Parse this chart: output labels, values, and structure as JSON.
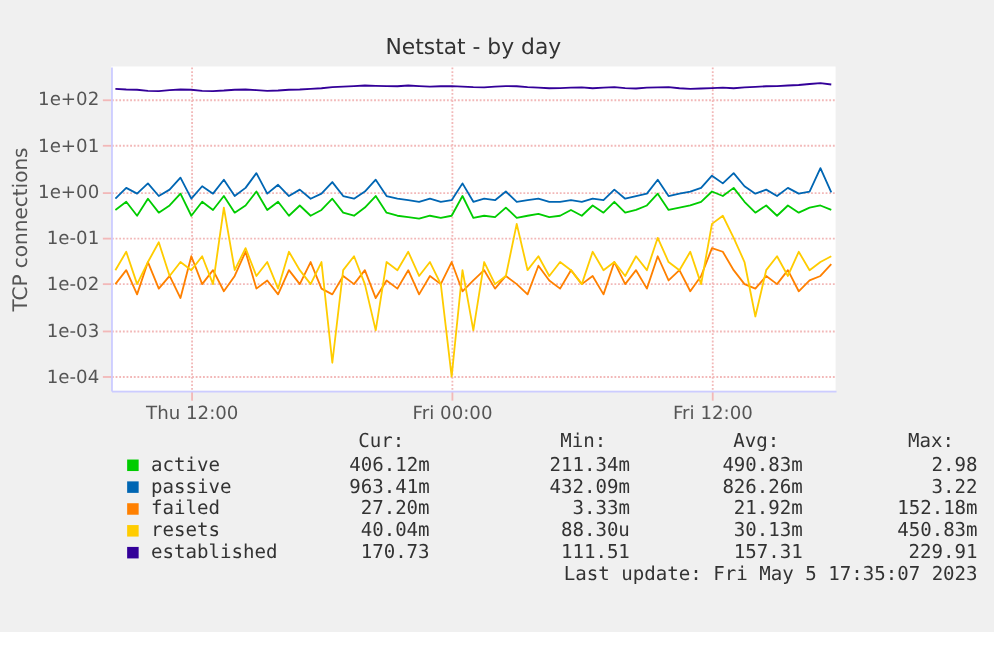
{
  "chart_data": {
    "type": "line",
    "title": "Netstat - by day",
    "ylabel": "TCP connections",
    "log": true,
    "grid": true,
    "legend": "bottom",
    "xlim": [
      "2023-05-04T08:18",
      "2023-05-05T17:42"
    ],
    "xticks": [
      {
        "value": "2023-05-04T12:00",
        "label": "Thu 12:00"
      },
      {
        "value": "2023-05-05T00:00",
        "label": "Fri 00:00"
      },
      {
        "value": "2023-05-05T12:00",
        "label": "Fri 12:00"
      }
    ],
    "ylim": [
      5e-05,
      500
    ],
    "yticks": [
      {
        "value": 0.0001,
        "label": "1e-04"
      },
      {
        "value": 0.001,
        "label": "1e-03"
      },
      {
        "value": 0.01,
        "label": "1e-02"
      },
      {
        "value": 0.1,
        "label": "1e-01"
      },
      {
        "value": 1,
        "label": "1e+00"
      },
      {
        "value": 10,
        "label": "1e+01"
      },
      {
        "value": 100,
        "label": "1e+02"
      }
    ],
    "x": [
      "2023-05-04T08:30",
      "2023-05-04T09:00",
      "2023-05-04T09:30",
      "2023-05-04T10:00",
      "2023-05-04T10:30",
      "2023-05-04T11:00",
      "2023-05-04T11:30",
      "2023-05-04T12:00",
      "2023-05-04T12:30",
      "2023-05-04T13:00",
      "2023-05-04T13:30",
      "2023-05-04T14:00",
      "2023-05-04T14:30",
      "2023-05-04T15:00",
      "2023-05-04T15:30",
      "2023-05-04T16:00",
      "2023-05-04T16:30",
      "2023-05-04T17:00",
      "2023-05-04T17:30",
      "2023-05-04T18:00",
      "2023-05-04T18:30",
      "2023-05-04T19:00",
      "2023-05-04T19:30",
      "2023-05-04T20:00",
      "2023-05-04T20:30",
      "2023-05-04T21:00",
      "2023-05-04T21:30",
      "2023-05-04T22:00",
      "2023-05-04T22:30",
      "2023-05-04T23:00",
      "2023-05-04T23:30",
      "2023-05-05T00:00",
      "2023-05-05T00:30",
      "2023-05-05T01:00",
      "2023-05-05T01:30",
      "2023-05-05T02:00",
      "2023-05-05T02:30",
      "2023-05-05T03:00",
      "2023-05-05T03:30",
      "2023-05-05T04:00",
      "2023-05-05T04:30",
      "2023-05-05T05:00",
      "2023-05-05T05:30",
      "2023-05-05T06:00",
      "2023-05-05T06:30",
      "2023-05-05T07:00",
      "2023-05-05T07:30",
      "2023-05-05T08:00",
      "2023-05-05T08:30",
      "2023-05-05T09:00",
      "2023-05-05T09:30",
      "2023-05-05T10:00",
      "2023-05-05T10:30",
      "2023-05-05T11:00",
      "2023-05-05T11:30",
      "2023-05-05T12:00",
      "2023-05-05T12:30",
      "2023-05-05T13:00",
      "2023-05-05T13:30",
      "2023-05-05T14:00",
      "2023-05-05T14:30",
      "2023-05-05T15:00",
      "2023-05-05T15:30",
      "2023-05-05T16:00",
      "2023-05-05T16:30",
      "2023-05-05T17:00",
      "2023-05-05T17:30"
    ],
    "series": [
      {
        "name": "active",
        "color": "#00cc00",
        "values": [
          0.4,
          0.6,
          0.3,
          0.7,
          0.35,
          0.5,
          0.9,
          0.3,
          0.6,
          0.4,
          0.8,
          0.35,
          0.5,
          1.0,
          0.4,
          0.6,
          0.3,
          0.5,
          0.3,
          0.4,
          0.7,
          0.35,
          0.3,
          0.45,
          0.8,
          0.35,
          0.3,
          0.28,
          0.26,
          0.3,
          0.27,
          0.3,
          0.8,
          0.27,
          0.3,
          0.28,
          0.45,
          0.27,
          0.3,
          0.33,
          0.28,
          0.3,
          0.4,
          0.3,
          0.5,
          0.35,
          0.6,
          0.35,
          0.4,
          0.5,
          0.9,
          0.4,
          0.45,
          0.5,
          0.6,
          1.0,
          0.8,
          1.2,
          0.6,
          0.35,
          0.5,
          0.3,
          0.5,
          0.35,
          0.45,
          0.5,
          0.4
        ]
      },
      {
        "name": "passive",
        "color": "#0066b3",
        "values": [
          0.7,
          1.2,
          0.9,
          1.5,
          0.8,
          1.1,
          2.0,
          0.7,
          1.3,
          0.9,
          1.8,
          0.8,
          1.2,
          2.5,
          0.9,
          1.4,
          0.8,
          1.1,
          0.7,
          0.9,
          1.6,
          0.8,
          0.7,
          1.0,
          1.8,
          0.8,
          0.7,
          0.65,
          0.6,
          0.7,
          0.6,
          0.65,
          1.5,
          0.6,
          0.7,
          0.65,
          1.0,
          0.6,
          0.65,
          0.7,
          0.6,
          0.6,
          0.65,
          0.6,
          0.7,
          0.65,
          1.1,
          0.7,
          0.8,
          0.9,
          1.8,
          0.8,
          0.9,
          1.0,
          1.2,
          2.2,
          1.5,
          2.5,
          1.3,
          0.9,
          1.1,
          0.8,
          1.2,
          0.9,
          1.0,
          3.2,
          0.96
        ]
      },
      {
        "name": "failed",
        "color": "#ff8000",
        "values": [
          0.01,
          0.02,
          0.006,
          0.03,
          0.008,
          0.015,
          0.005,
          0.04,
          0.01,
          0.02,
          0.007,
          0.015,
          0.05,
          0.008,
          0.012,
          0.006,
          0.02,
          0.01,
          0.03,
          0.008,
          0.006,
          0.015,
          0.01,
          0.02,
          0.005,
          0.012,
          0.008,
          0.02,
          0.006,
          0.015,
          0.01,
          0.03,
          0.007,
          0.012,
          0.02,
          0.008,
          0.015,
          0.01,
          0.006,
          0.025,
          0.012,
          0.008,
          0.02,
          0.01,
          0.015,
          0.006,
          0.03,
          0.01,
          0.02,
          0.008,
          0.04,
          0.012,
          0.02,
          0.007,
          0.015,
          0.06,
          0.05,
          0.02,
          0.01,
          0.008,
          0.015,
          0.01,
          0.02,
          0.007,
          0.012,
          0.015,
          0.027
        ]
      },
      {
        "name": "resets",
        "color": "#ffcc00",
        "values": [
          0.02,
          0.05,
          0.01,
          0.03,
          0.08,
          0.015,
          0.03,
          0.02,
          0.04,
          0.01,
          0.45,
          0.02,
          0.06,
          0.015,
          0.03,
          0.008,
          0.05,
          0.02,
          0.01,
          0.03,
          0.0002,
          0.02,
          0.04,
          0.01,
          0.001,
          0.03,
          0.02,
          0.05,
          0.015,
          0.03,
          0.01,
          0.0001,
          0.02,
          0.001,
          0.03,
          0.01,
          0.015,
          0.2,
          0.02,
          0.04,
          0.015,
          0.03,
          0.02,
          0.01,
          0.05,
          0.02,
          0.03,
          0.015,
          0.04,
          0.02,
          0.1,
          0.03,
          0.02,
          0.05,
          0.01,
          0.2,
          0.3,
          0.1,
          0.03,
          0.002,
          0.02,
          0.04,
          0.015,
          0.05,
          0.02,
          0.03,
          0.04
        ]
      },
      {
        "name": "established",
        "color": "#330099",
        "values": [
          165,
          160,
          158,
          150,
          148,
          155,
          160,
          158,
          150,
          148,
          152,
          158,
          160,
          155,
          150,
          152,
          158,
          160,
          165,
          170,
          180,
          185,
          190,
          195,
          192,
          190,
          188,
          195,
          190,
          185,
          188,
          190,
          185,
          180,
          178,
          185,
          190,
          188,
          180,
          175,
          170,
          172,
          175,
          178,
          170,
          175,
          180,
          172,
          168,
          175,
          178,
          180,
          170,
          165,
          168,
          172,
          175,
          170,
          178,
          182,
          188,
          190,
          195,
          200,
          210,
          220,
          205
        ]
      }
    ],
    "annotations": [
      "Cur:",
      "Min:",
      "Avg:",
      "Max:",
      "406.12m",
      "211.34m",
      "490.83m",
      "2.98",
      "963.41m",
      "432.09m",
      "826.26m",
      "3.22",
      "27.20m",
      "3.33m",
      "21.92m",
      "152.18m",
      "40.04m",
      "88.30u",
      "30.13m",
      "450.83m",
      "170.73",
      "111.51",
      "157.31",
      "229.91",
      "Last update: Fri May  5 17:35:07 2023"
    ]
  }
}
